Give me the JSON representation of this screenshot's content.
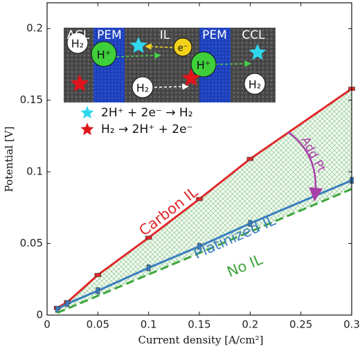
{
  "chart_data": {
    "type": "line",
    "xlabel": "Current density [A/cm²]",
    "ylabel": "Potential [V]",
    "xlim": [
      0,
      0.3
    ],
    "ylim": [
      0,
      0.218
    ],
    "xticks": [
      0,
      0.05,
      0.1,
      0.15,
      0.2,
      0.25,
      0.3
    ],
    "yticks": [
      0,
      0.05,
      0.1,
      0.15,
      0.2
    ],
    "series": [
      {
        "name": "Carbon IL",
        "color": "#e0272a",
        "marker": "hbar",
        "dashed": false,
        "x": [
          0.01,
          0.02,
          0.05,
          0.1,
          0.15,
          0.2,
          0.3
        ],
        "values": [
          0.005,
          0.009,
          0.028,
          0.054,
          0.081,
          0.109,
          0.158
        ]
      },
      {
        "name": "Platinized IL",
        "color": "#3a7ebf",
        "marker": "vbar",
        "dashed": false,
        "x": [
          0.01,
          0.02,
          0.05,
          0.1,
          0.15,
          0.2,
          0.3
        ],
        "values": [
          0.004,
          0.008,
          0.017,
          0.033,
          0.048,
          0.064,
          0.094
        ]
      },
      {
        "name": "No IL",
        "color": "#3fa63c",
        "marker": null,
        "dashed": true,
        "x": [
          0.01,
          0.3
        ],
        "values": [
          0.0015,
          0.088
        ]
      }
    ],
    "shade": {
      "between": [
        "Carbon IL",
        "No IL"
      ],
      "color": "#3fa63c"
    },
    "annotation": {
      "text": "Add Pt",
      "color": "#a83ea8"
    },
    "inset": {
      "layers": [
        "ACL",
        "PEM",
        "IL",
        "PEM",
        "CCL"
      ],
      "species": {
        "h2": "H₂",
        "proton": "H⁺",
        "electron": "e⁻"
      },
      "legend": [
        "2H⁺ + 2e⁻ → H₂",
        "H₂ → 2H⁺ + 2e⁻"
      ]
    }
  }
}
